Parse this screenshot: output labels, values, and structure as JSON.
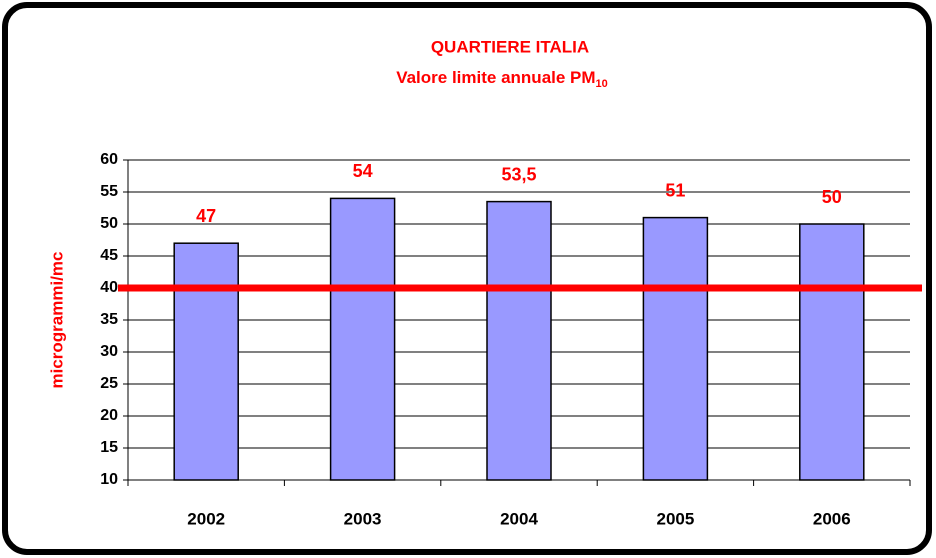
{
  "chart_data": {
    "type": "bar",
    "title": "QUARTIERE ITALIA",
    "subtitle": "Valore limite annuale PM",
    "subtitle_subscript": "10",
    "ylabel": "microgrammi/mc",
    "categories": [
      "2002",
      "2003",
      "2004",
      "2005",
      "2006"
    ],
    "values": [
      47,
      54,
      53.5,
      51,
      50
    ],
    "value_labels": [
      "47",
      "54",
      "53,5",
      "51",
      "50"
    ],
    "color": "#9999ff",
    "label_color": "#ff0000",
    "ylim": [
      10,
      60
    ],
    "yticks": [
      10,
      15,
      20,
      25,
      30,
      35,
      40,
      45,
      50,
      55,
      60
    ],
    "grid": true,
    "reference_line": {
      "value": 40,
      "color": "#ff0000"
    }
  }
}
